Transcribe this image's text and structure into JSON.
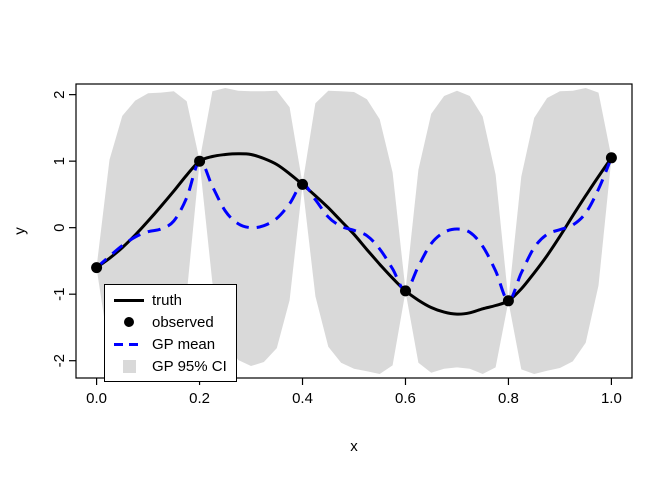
{
  "chart_data": {
    "type": "line",
    "title": "",
    "xlabel": "x",
    "ylabel": "y",
    "xlim": [
      -0.04,
      1.04
    ],
    "ylim": [
      -2.26,
      2.16
    ],
    "grid": false,
    "x_ticks": [
      0.0,
      0.2,
      0.4,
      0.6,
      0.8,
      1.0
    ],
    "x_tick_labels": [
      "0.0",
      "0.2",
      "0.4",
      "0.6",
      "0.8",
      "1.0"
    ],
    "y_ticks": [
      -2,
      -1,
      0,
      1,
      2
    ],
    "y_tick_labels": [
      "-2",
      "-1",
      "0",
      "1",
      "2"
    ],
    "x": [
      0,
      0.025,
      0.05,
      0.075,
      0.1,
      0.125,
      0.15,
      0.175,
      0.2,
      0.225,
      0.25,
      0.275,
      0.3,
      0.325,
      0.35,
      0.375,
      0.4,
      0.425,
      0.45,
      0.475,
      0.5,
      0.525,
      0.55,
      0.575,
      0.6,
      0.625,
      0.65,
      0.675,
      0.7,
      0.725,
      0.75,
      0.775,
      0.8,
      0.825,
      0.85,
      0.875,
      0.9,
      0.925,
      0.95,
      0.975,
      1
    ],
    "series": [
      {
        "name": "truth",
        "type": "line",
        "style": "solid",
        "color": "#000000",
        "width": 3,
        "values": [
          -0.6,
          -0.46,
          -0.3,
          -0.11,
          0.1,
          0.32,
          0.55,
          0.79,
          1,
          1.07,
          1.1,
          1.11,
          1.1,
          1.04,
          0.95,
          0.81,
          0.65,
          0.48,
          0.3,
          0.1,
          -0.1,
          -0.33,
          -0.55,
          -0.76,
          -0.95,
          -1.09,
          -1.2,
          -1.27,
          -1.3,
          -1.28,
          -1.22,
          -1.17,
          -1.1,
          -0.92,
          -0.68,
          -0.42,
          -0.13,
          0.18,
          0.48,
          0.77,
          1.05
        ]
      },
      {
        "name": "GP mean",
        "type": "line",
        "style": "dashed",
        "color": "#0000ff",
        "width": 3,
        "values": [
          -0.6,
          -0.43,
          -0.27,
          -0.14,
          -0.06,
          -0.02,
          0.1,
          0.45,
          1,
          0.62,
          0.25,
          0.06,
          0,
          0.03,
          0.14,
          0.36,
          0.65,
          0.42,
          0.16,
          0.02,
          -0.04,
          -0.12,
          -0.32,
          -0.62,
          -0.95,
          -0.58,
          -0.24,
          -0.07,
          -0.02,
          -0.07,
          -0.28,
          -0.65,
          -1.1,
          -0.68,
          -0.3,
          -0.1,
          -0.03,
          0.04,
          0.22,
          0.58,
          1.05
        ]
      },
      {
        "name": "GP 95% CI",
        "type": "band",
        "color": "#d9d9d9",
        "upper": [
          -0.59,
          1.02,
          1.68,
          1.91,
          2.02,
          2.03,
          2.05,
          1.9,
          1.01,
          2.05,
          2.1,
          2.06,
          2.05,
          2.05,
          2.06,
          1.81,
          0.66,
          1.87,
          2.06,
          2.05,
          2.04,
          1.93,
          1.63,
          0.83,
          -0.94,
          0.87,
          1.71,
          1.98,
          2.06,
          1.98,
          1.67,
          0.8,
          -1.09,
          0.77,
          1.65,
          1.95,
          2.05,
          2.06,
          2.1,
          2.03,
          1.06
        ],
        "lower": [
          -0.61,
          -1.88,
          -2.18,
          -2.16,
          -2.12,
          -2.07,
          -1.85,
          -1,
          0.99,
          -0.83,
          -1.7,
          -1.99,
          -2.08,
          -2.02,
          -1.81,
          -1.09,
          0.64,
          -1.03,
          -1.79,
          -2.03,
          -2.12,
          -2.16,
          -2.2,
          -2.07,
          -0.96,
          -2.03,
          -2.18,
          -2.12,
          -2.1,
          -2.12,
          -2.2,
          -2.1,
          -1.11,
          -2.13,
          -2.2,
          -2.15,
          -2.11,
          -2.01,
          -1.73,
          -0.87,
          1.04
        ]
      },
      {
        "name": "observed",
        "type": "scatter",
        "color": "#000000",
        "marker": "filled-circle",
        "size": 11,
        "points_x": [
          0,
          0.2,
          0.4,
          0.6,
          0.8,
          1.0
        ],
        "points_y": [
          -0.6,
          1.0,
          0.65,
          -0.95,
          -1.1,
          1.05
        ]
      }
    ],
    "legend": {
      "position": "bottom-left",
      "entries": [
        {
          "label": "truth",
          "type": "line-solid",
          "color": "#000000"
        },
        {
          "label": "observed",
          "type": "point",
          "color": "#000000"
        },
        {
          "label": "GP mean",
          "type": "line-dashed",
          "color": "#0000ff"
        },
        {
          "label": "GP 95% CI",
          "type": "square",
          "color": "#d9d9d9"
        }
      ]
    }
  }
}
